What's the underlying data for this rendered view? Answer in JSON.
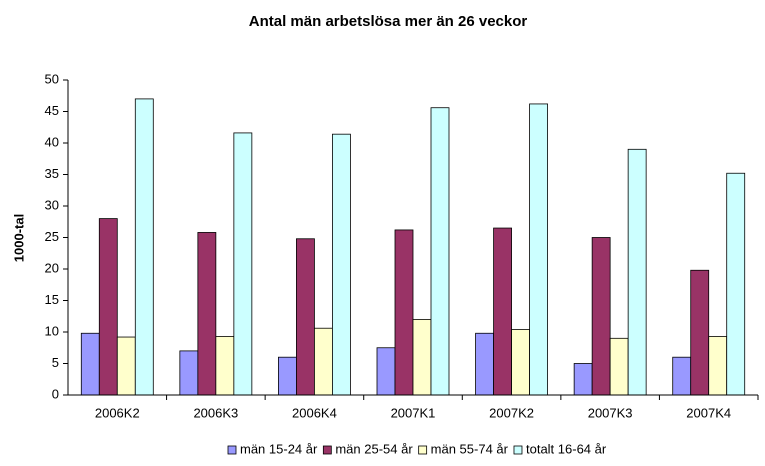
{
  "chart_data": {
    "type": "bar",
    "title": "Antal män arbetslösa mer än 26 veckor",
    "y_label": "1000-tal",
    "categories": [
      "2006K2",
      "2006K3",
      "2006K4",
      "2007K1",
      "2007K2",
      "2007K3",
      "2007K4"
    ],
    "series": [
      {
        "name": "män 15-24 år",
        "color": "#9999ff",
        "values": [
          9.8,
          7,
          6,
          7.5,
          9.8,
          5,
          6
        ]
      },
      {
        "name": "män 25-54 år",
        "color": "#993366",
        "values": [
          28,
          25.8,
          24.8,
          26.2,
          26.5,
          25,
          19.8
        ]
      },
      {
        "name": "män 55-74 år",
        "color": "#ffffcc",
        "values": [
          9.2,
          9.3,
          10.6,
          12,
          10.4,
          9,
          9.3
        ]
      },
      {
        "name": "totalt 16-64 år",
        "color": "#ccffff",
        "values": [
          47,
          41.6,
          41.4,
          45.6,
          46.2,
          39,
          35.2
        ]
      }
    ],
    "ylim": [
      0,
      50
    ],
    "yticks": [
      0,
      5,
      10,
      15,
      20,
      25,
      30,
      35,
      40,
      45,
      50
    ],
    "grid": false,
    "legend": "bottom"
  }
}
